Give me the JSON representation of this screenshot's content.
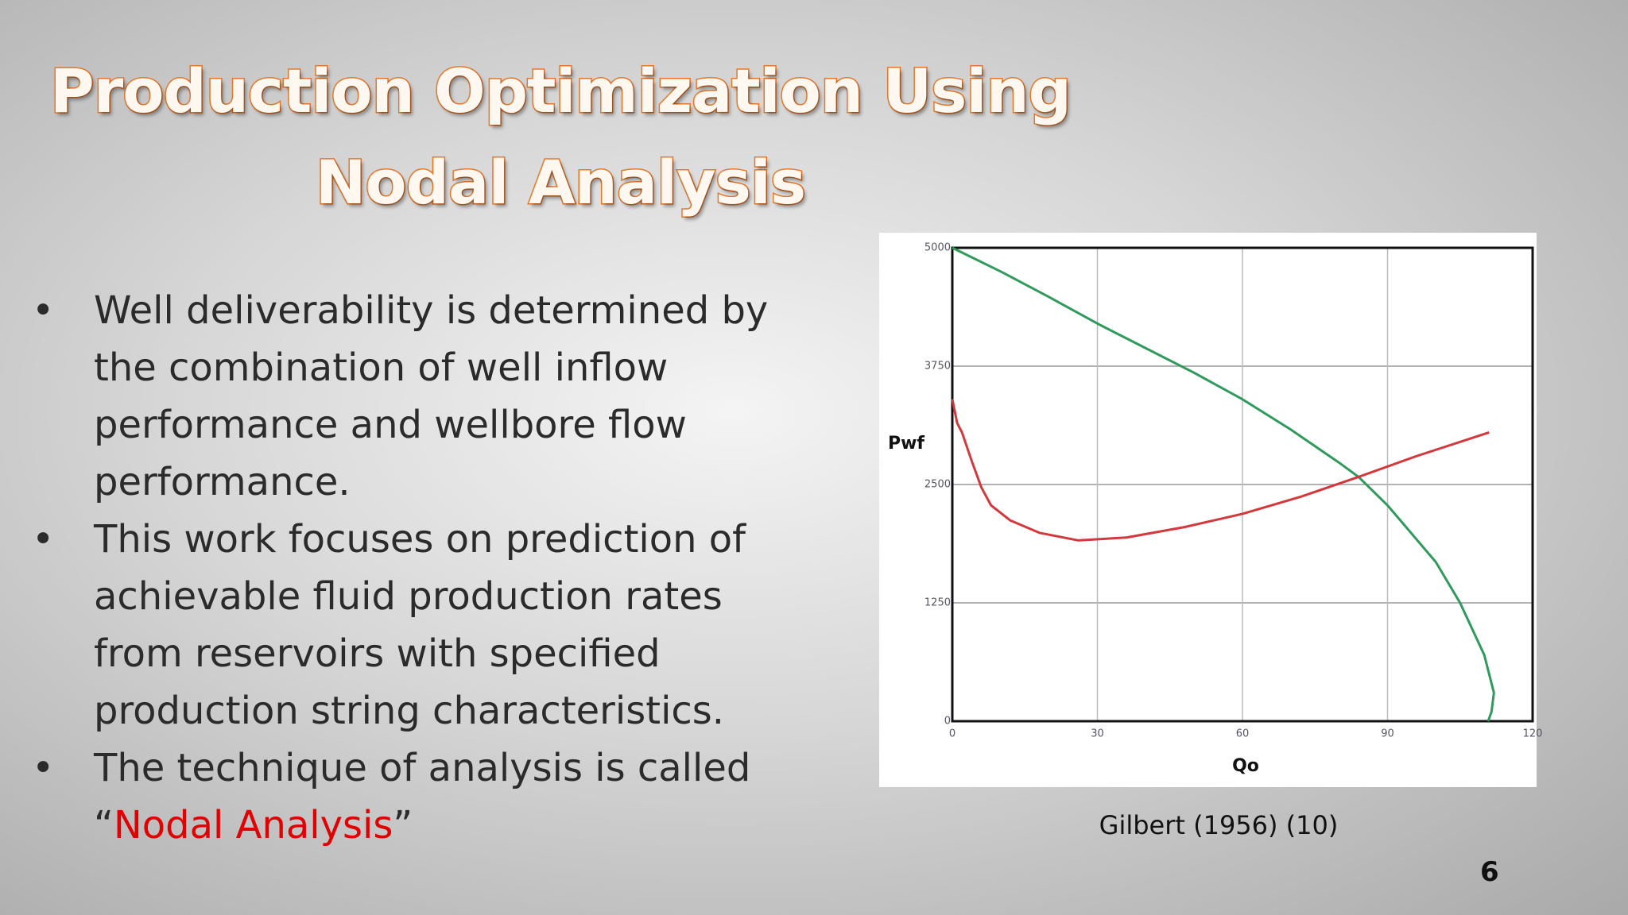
{
  "slide": {
    "title_lines": [
      "Production Optimization Using",
      "Nodal Analysis"
    ],
    "bullets": [
      "Well deliverability is determined by the combination of well inflow performance and wellbore flow performance.",
      "This work focuses on prediction of achievable fluid production rates from reservoirs with specified production string characteristics.",
      [
        "The technique of analysis is called",
        "“",
        "Nodal Analysis",
        "”"
      ]
    ],
    "caption": "Gilbert (1956) (10)",
    "page_number": "6"
  },
  "chart_data": {
    "type": "line",
    "x_label": "Qo",
    "y_label": "Pwf",
    "xlim": [
      0,
      120
    ],
    "xticks": [
      0,
      30,
      60,
      90,
      120
    ],
    "ylim": [
      0,
      5000
    ],
    "yticks": [
      0,
      1250,
      2500,
      3750,
      5000
    ],
    "grid": true,
    "series": [
      {
        "color": "#2f9a5c",
        "x": [
          0,
          10,
          20,
          30,
          40,
          50,
          60,
          70,
          80,
          84,
          90,
          100,
          105,
          110,
          112,
          111.5,
          110.8
        ],
        "values": [
          5000,
          4750,
          4480,
          4200,
          3940,
          3680,
          3400,
          3080,
          2730,
          2580,
          2280,
          1680,
          1250,
          700,
          300,
          100,
          0
        ]
      },
      {
        "color": "#d2383c",
        "x": [
          0,
          1,
          2,
          4,
          6,
          8,
          12,
          18,
          26,
          36,
          48,
          60,
          72,
          84,
          96,
          111
        ],
        "values": [
          3400,
          3150,
          3050,
          2750,
          2470,
          2280,
          2120,
          1990,
          1910,
          1940,
          2050,
          2190,
          2370,
          2580,
          2800,
          3050
        ]
      }
    ]
  }
}
